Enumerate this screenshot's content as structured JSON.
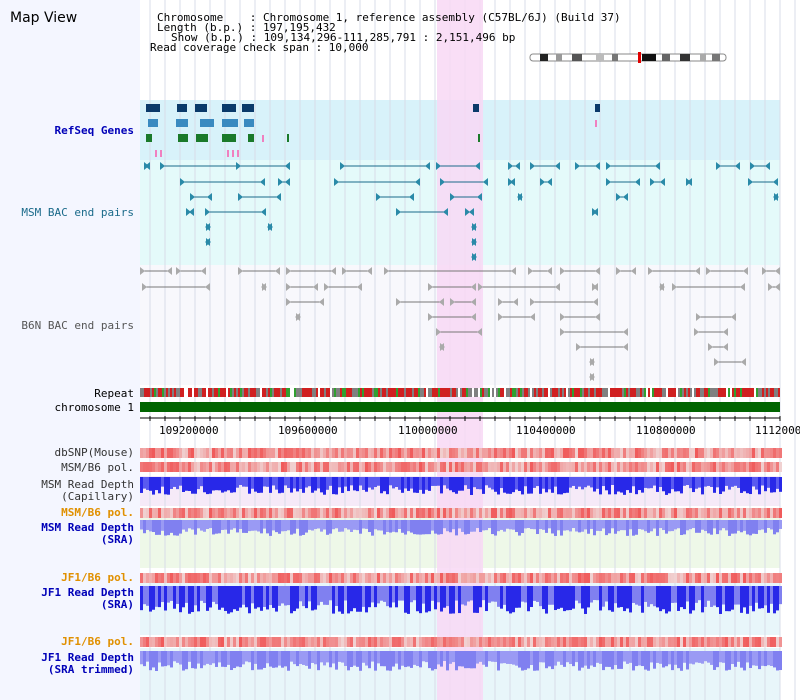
{
  "header": {
    "title": "Map View",
    "info_lines": [
      "Chromosome    : Chromosome 1, reference assembly (C57BL/6J) (Build 37)",
      "Length (b.p.) : 197,195,432",
      "Show (b.p.) : 109,134,296-111,285,791 : 2,151,496 bp",
      "Read coverage check span : 10,000"
    ]
  },
  "tracks": {
    "refseq_genes": "RefSeq Genes",
    "msm_bac": "MSM BAC end pairs",
    "b6n_bac": "B6N BAC end pairs",
    "repeat": "Repeat",
    "chromosome": "chromosome 1",
    "dbsnp": "dbSNP(Mouse)",
    "msm_b6_pol": "MSM/B6 pol.",
    "msm_read_depth_cap_1": "MSM Read Depth",
    "msm_read_depth_cap_2": "(Capillary)",
    "msm_b6_pol_2": "MSM/B6 pol.",
    "msm_read_depth_sra_1": "MSM Read Depth",
    "msm_read_depth_sra_2": "(SRA)",
    "jf1_b6_pol": "JF1/B6 pol.",
    "jf1_read_depth_sra_1": "JF1 Read Depth",
    "jf1_read_depth_sra_2": "(SRA)",
    "jf1_b6_pol_2": "JF1/B6 pol.",
    "jf1_read_depth_trim_1": "JF1 Read Depth",
    "jf1_read_depth_trim_2": "(SRA trimmed)"
  },
  "axis": {
    "ticks": [
      "109200000",
      "109600000",
      "110000000",
      "110400000",
      "110800000",
      "1112000"
    ]
  },
  "colors": {
    "highlight": "#f8d8f4",
    "refseq_bg": "#d8f2fa",
    "bac_bg": "#e4fafa",
    "chrom_green": "#006400",
    "read_depth_blue": "#2828e8",
    "read_depth_light": "#8080f0",
    "pol_red": "#f07070"
  }
}
